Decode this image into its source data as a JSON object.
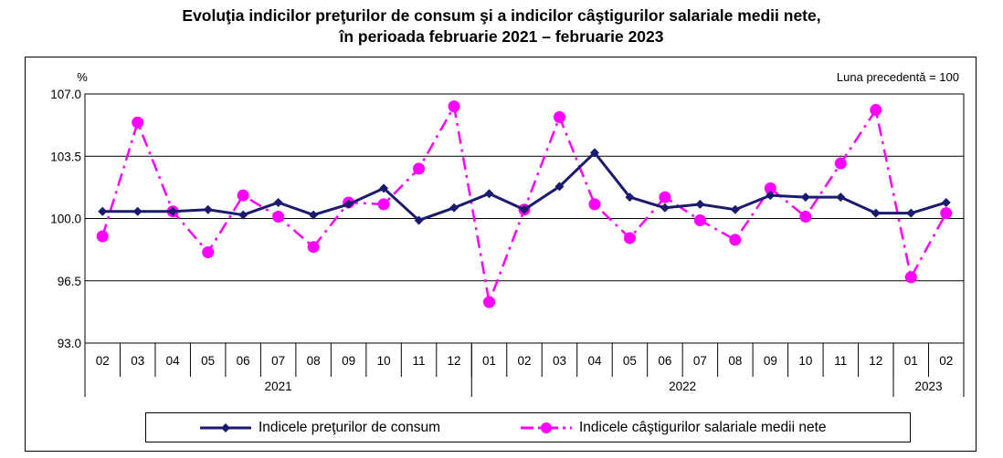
{
  "title_line1": "Evoluţia indicilor preţurilor de consum şi a indicilor câştigurilor salariale medii nete,",
  "title_line2": "în perioada februarie 2021 – februarie 2023",
  "colors": {
    "cpi": "#1a1a6e",
    "wage": "#ff00ff",
    "grid": "#000000"
  },
  "chart_data": {
    "type": "line",
    "title": "Evoluţia indicilor preţurilor de consum şi a indicilor câştigurilor salariale medii nete, în perioada februarie 2021 – februarie 2023",
    "ylabel": "%",
    "note": "Luna precedentă = 100",
    "ylim": [
      93.0,
      107.0
    ],
    "yticks": [
      "107.0",
      "103.5",
      "100.0",
      "96.5",
      "93.0"
    ],
    "ytick_values": [
      107.0,
      103.5,
      100.0,
      96.5,
      93.0
    ],
    "categories": [
      "02",
      "03",
      "04",
      "05",
      "06",
      "07",
      "08",
      "09",
      "10",
      "11",
      "12",
      "01",
      "02",
      "03",
      "04",
      "05",
      "06",
      "07",
      "08",
      "09",
      "10",
      "11",
      "12",
      "01",
      "02"
    ],
    "years": [
      {
        "label": "2021",
        "count": 11
      },
      {
        "label": "2022",
        "count": 12
      },
      {
        "label": "2023",
        "count": 2
      }
    ],
    "series": [
      {
        "name": "Indicele preţurilor de consum",
        "style": "solid-diamond",
        "values": [
          100.4,
          100.4,
          100.4,
          100.5,
          100.2,
          100.9,
          100.2,
          100.8,
          101.7,
          99.9,
          100.6,
          101.4,
          100.5,
          101.8,
          103.7,
          101.2,
          100.6,
          100.8,
          100.5,
          101.3,
          101.2,
          101.2,
          100.3,
          100.3,
          100.9
        ]
      },
      {
        "name": "Indicele câştigurilor salariale medii nete",
        "style": "dashdot-circle",
        "values": [
          99.0,
          105.4,
          100.4,
          98.1,
          101.3,
          100.1,
          98.4,
          100.9,
          100.8,
          102.8,
          106.3,
          95.3,
          100.5,
          105.7,
          100.8,
          98.9,
          101.2,
          99.9,
          98.8,
          101.7,
          100.1,
          103.1,
          106.1,
          96.7,
          100.3
        ]
      }
    ]
  }
}
